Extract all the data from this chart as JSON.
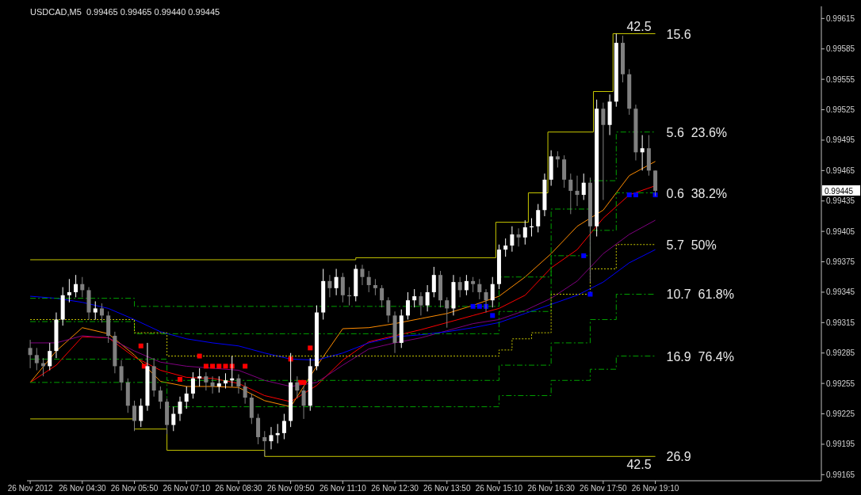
{
  "chart_data": {
    "type": "candlestick",
    "title": "USDCAD,M5  0.99465 0.99465 0.99440 0.99445",
    "x": [
      "2012-11-26T03:10",
      "2012-11-26T03:50",
      "2012-11-26T04:30",
      "2012-11-26T05:10",
      "2012-11-26T05:50",
      "2012-11-26T06:30",
      "2012-11-26T07:10",
      "2012-11-26T07:50",
      "2012-11-26T08:30",
      "2012-11-26T09:10",
      "2012-11-26T09:50",
      "2012-11-26T10:30",
      "2012-11-26T11:10",
      "2012-11-26T11:50",
      "2012-11-26T12:30",
      "2012-11-26T13:10",
      "2012-11-26T13:50",
      "2012-11-26T14:30",
      "2012-11-26T15:10",
      "2012-11-26T15:50",
      "2012-11-26T16:30",
      "2012-11-26T17:10",
      "2012-11-26T17:50",
      "2012-11-26T18:30",
      "2012-11-26T19:10"
    ],
    "series": [
      {
        "type": "line",
        "color": "#ff8c00",
        "values": [
          0.99256,
          0.99287,
          0.9931,
          0.99304,
          0.99283,
          0.99257,
          0.99252,
          0.99252,
          0.99251,
          0.99238,
          0.99232,
          0.99272,
          0.99309,
          0.9931,
          0.99314,
          0.99319,
          0.99324,
          0.99332,
          0.99341,
          0.9936,
          0.99383,
          0.9941,
          0.99426,
          0.9946,
          0.99474
        ]
      },
      {
        "type": "line",
        "color": "#ff0000",
        "values": [
          0.99256,
          0.99273,
          0.99301,
          0.993,
          0.99281,
          0.99268,
          0.99261,
          0.9926,
          0.99255,
          0.99243,
          0.99237,
          0.99253,
          0.99278,
          0.99296,
          0.99302,
          0.99308,
          0.99315,
          0.99322,
          0.99329,
          0.99342,
          0.99369,
          0.99387,
          0.99418,
          0.99441,
          0.9945
        ]
      },
      {
        "type": "line",
        "color": "#800080",
        "values": [
          0.99295,
          0.99295,
          0.99302,
          0.993,
          0.99287,
          0.99276,
          0.99272,
          0.9927,
          0.99268,
          0.99258,
          0.99252,
          0.99256,
          0.99273,
          0.99289,
          0.99295,
          0.993,
          0.99307,
          0.99314,
          0.99318,
          0.99327,
          0.99339,
          0.99356,
          0.99383,
          0.99402,
          0.99416
        ]
      },
      {
        "type": "line",
        "color": "#0000ff",
        "values": [
          0.99341,
          0.99339,
          0.99335,
          0.99329,
          0.99318,
          0.99306,
          0.99299,
          0.99295,
          0.99292,
          0.99285,
          0.99279,
          0.99278,
          0.99285,
          0.99295,
          0.99301,
          0.99303,
          0.99306,
          0.9931,
          0.99315,
          0.99324,
          0.99333,
          0.99342,
          0.99355,
          0.99374,
          0.99387
        ]
      },
      {
        "type": "step",
        "color": "#c8c800",
        "x": [
          "2012-11-26T03:10",
          "2012-11-26T11:30",
          "2012-11-26T15:05",
          "2012-11-26T15:55",
          "2012-11-26T16:25",
          "2012-11-26T17:35",
          "2012-11-26T18:05",
          "2012-11-26T19:10"
        ],
        "values": [
          0.99377,
          0.99379,
          0.99414,
          0.99443,
          0.99503,
          0.99543,
          0.996,
          0.996
        ]
      },
      {
        "type": "step",
        "color": "#c8c800",
        "x": [
          "2012-11-26T03:10",
          "2012-11-26T05:50",
          "2012-11-26T06:40",
          "2012-11-26T09:10",
          "2012-11-26T19:10"
        ],
        "values": [
          0.9922,
          0.9921,
          0.99189,
          0.99183,
          0.99183
        ]
      },
      {
        "type": "step",
        "color": "#00a000",
        "line_style": "dashed",
        "x": [
          "2012-11-26T03:10",
          "2012-11-26T05:50",
          "2012-11-26T15:10",
          "2012-11-26T16:30",
          "2012-11-26T17:30",
          "2012-11-26T18:10",
          "2012-11-26T19:10"
        ],
        "values": [
          0.99339,
          0.99331,
          0.9936,
          0.99427,
          0.99455,
          0.99503,
          0.99503
        ]
      },
      {
        "type": "step",
        "color": "#00a000",
        "line_style": "dashed",
        "x": [
          "2012-11-26T03:10",
          "2012-11-26T05:50",
          "2012-11-26T15:10",
          "2012-11-26T16:30",
          "2012-11-26T17:30",
          "2012-11-26T18:10",
          "2012-11-26T19:10"
        ],
        "values": [
          0.99316,
          0.99304,
          0.99326,
          0.99381,
          0.99406,
          0.99443,
          0.99443
        ]
      },
      {
        "type": "step",
        "color": "#00a000",
        "line_style": "dashed",
        "x": [
          "2012-11-26T03:10",
          "2012-11-26T06:40",
          "2012-11-26T15:10",
          "2012-11-26T16:30",
          "2012-11-26T17:30",
          "2012-11-26T18:10",
          "2012-11-26T19:10"
        ],
        "values": [
          0.99279,
          0.99258,
          0.99273,
          0.99295,
          0.99318,
          0.99343,
          0.99343
        ]
      },
      {
        "type": "step",
        "color": "#00a000",
        "line_style": "dashed",
        "x": [
          "2012-11-26T03:10",
          "2012-11-26T06:40",
          "2012-11-26T15:10",
          "2012-11-26T16:30",
          "2012-11-26T17:30",
          "2012-11-26T18:10",
          "2012-11-26T19:10"
        ],
        "values": [
          0.99256,
          0.99232,
          0.99243,
          0.99258,
          0.99269,
          0.99282,
          0.99282
        ]
      },
      {
        "type": "step",
        "color": "#c8c800",
        "line_style": "dotted",
        "x": [
          "2012-11-26T03:10",
          "2012-11-26T05:50",
          "2012-11-26T06:40",
          "2012-11-26T15:10",
          "2012-11-26T15:30",
          "2012-11-26T16:00",
          "2012-11-26T16:30",
          "2012-11-26T17:30",
          "2012-11-26T18:10",
          "2012-11-26T19:10"
        ],
        "values": [
          0.99318,
          0.99305,
          0.99282,
          0.99288,
          0.99299,
          0.99305,
          0.99343,
          0.99368,
          0.99392,
          0.99392
        ]
      },
      {
        "type": "scatter",
        "color": "#ff0000",
        "marker": "square",
        "x": [
          "2012-11-26T06:00",
          "2012-11-26T06:05",
          "2012-11-26T07:00",
          "2012-11-26T07:30",
          "2012-11-26T07:40",
          "2012-11-26T07:50",
          "2012-11-26T08:00",
          "2012-11-26T08:10",
          "2012-11-26T08:20",
          "2012-11-26T08:40",
          "2012-11-26T09:50",
          "2012-11-26T10:05",
          "2012-11-26T10:10",
          "2012-11-26T10:20"
        ],
        "values": [
          0.99292,
          0.99272,
          0.99259,
          0.99282,
          0.99272,
          0.99272,
          0.99272,
          0.99272,
          0.99272,
          0.99272,
          0.99279,
          0.99256,
          0.99256,
          0.9929
        ]
      },
      {
        "type": "scatter",
        "color": "#0000ff",
        "marker": "square",
        "x": [
          "2012-11-26T14:30",
          "2012-11-26T14:40",
          "2012-11-26T14:50",
          "2012-11-26T15:00",
          "2012-11-26T17:20",
          "2012-11-26T17:30",
          "2012-11-26T18:30",
          "2012-11-26T18:40",
          "2012-11-26T19:10"
        ],
        "values": [
          0.99331,
          0.99331,
          0.99331,
          0.99322,
          0.99381,
          0.99343,
          0.99441,
          0.99441,
          0.99441
        ]
      },
      {
        "color": "#ffffff",
        "x": [
          "2012-11-26T03:40",
          "2012-11-26T03:50",
          "2012-11-26T04:00",
          "2012-11-26T04:10",
          "2012-11-26T04:20",
          "2012-11-26T04:50",
          "2012-11-26T06:00",
          "2012-11-26T06:10",
          "2012-11-26T06:50",
          "2012-11-26T07:00",
          "2012-11-26T07:10",
          "2012-11-26T07:20",
          "2012-11-26T07:30",
          "2012-11-26T08:00",
          "2012-11-26T08:10",
          "2012-11-26T08:20",
          "2012-11-26T09:20",
          "2012-11-26T09:30",
          "2012-11-26T09:40",
          "2012-11-26T09:50",
          "2012-11-26T10:20",
          "2012-11-26T10:30",
          "2012-11-26T10:40",
          "2012-11-26T11:00",
          "2012-11-26T11:30",
          "2012-11-26T12:40",
          "2012-11-26T12:50",
          "2012-11-26T13:00",
          "2012-11-26T13:20",
          "2012-11-26T13:30",
          "2012-11-26T14:00",
          "2012-11-26T14:20",
          "2012-11-26T15:00",
          "2012-11-26T15:10",
          "2012-11-26T15:20",
          "2012-11-26T15:30",
          "2012-11-26T15:50",
          "2012-11-26T16:00",
          "2012-11-26T16:10",
          "2012-11-26T16:20",
          "2012-11-26T16:30",
          "2012-11-26T17:20",
          "2012-11-26T17:40",
          "2012-11-26T18:00",
          "2012-11-26T18:10",
          "2012-11-26T18:50"
        ],
        "ohlc": [
          [
            0.99272,
            0.99295,
            0.99268,
            0.99287
          ],
          [
            0.99287,
            0.99325,
            0.9928,
            0.99318
          ],
          [
            0.99318,
            0.9935,
            0.99312,
            0.99342
          ],
          [
            0.99342,
            0.99358,
            0.99335,
            0.99345
          ],
          [
            0.99345,
            0.99362,
            0.9934,
            0.99353
          ],
          [
            0.99325,
            0.99336,
            0.99318,
            0.99329
          ],
          [
            0.99218,
            0.9924,
            0.99212,
            0.99233
          ],
          [
            0.99233,
            0.99295,
            0.99228,
            0.99272
          ],
          [
            0.99214,
            0.99232,
            0.99208,
            0.99225
          ],
          [
            0.99225,
            0.99242,
            0.99218,
            0.99237
          ],
          [
            0.99237,
            0.99252,
            0.9923,
            0.99245
          ],
          [
            0.99245,
            0.99266,
            0.9924,
            0.9926
          ],
          [
            0.9926,
            0.9927,
            0.99252,
            0.99262
          ],
          [
            0.99252,
            0.99262,
            0.99246,
            0.99255
          ],
          [
            0.99255,
            0.99265,
            0.9925,
            0.99258
          ],
          [
            0.99258,
            0.99282,
            0.99252,
            0.9926
          ],
          [
            0.99198,
            0.99212,
            0.9919,
            0.99204
          ],
          [
            0.99204,
            0.99215,
            0.99196,
            0.99206
          ],
          [
            0.99206,
            0.99225,
            0.992,
            0.99218
          ],
          [
            0.99218,
            0.99285,
            0.99212,
            0.99256
          ],
          [
            0.99233,
            0.9928,
            0.99228,
            0.99272
          ],
          [
            0.99272,
            0.99332,
            0.99268,
            0.99325
          ],
          [
            0.99325,
            0.99368,
            0.99318,
            0.99356
          ],
          [
            0.99349,
            0.99368,
            0.99342,
            0.9936
          ],
          [
            0.99341,
            0.99372,
            0.99336,
            0.99368
          ],
          [
            0.99295,
            0.99328,
            0.9929,
            0.99322
          ],
          [
            0.99322,
            0.99345,
            0.99318,
            0.99337
          ],
          [
            0.99337,
            0.99348,
            0.9933,
            0.99341
          ],
          [
            0.99332,
            0.99352,
            0.99326,
            0.99345
          ],
          [
            0.99345,
            0.9937,
            0.9934,
            0.99362
          ],
          [
            0.99329,
            0.99362,
            0.99322,
            0.99355
          ],
          [
            0.99347,
            0.99362,
            0.99342,
            0.99356
          ],
          [
            0.99337,
            0.9936,
            0.9933,
            0.99353
          ],
          [
            0.99353,
            0.99392,
            0.99348,
            0.99387
          ],
          [
            0.99387,
            0.99398,
            0.9938,
            0.99391
          ],
          [
            0.99391,
            0.9941,
            0.99385,
            0.99402
          ],
          [
            0.99399,
            0.99416,
            0.99392,
            0.99409
          ],
          [
            0.99409,
            0.99418,
            0.994,
            0.9941
          ],
          [
            0.9941,
            0.99432,
            0.99404,
            0.99426
          ],
          [
            0.99426,
            0.99462,
            0.9942,
            0.99456
          ],
          [
            0.99456,
            0.99485,
            0.9945,
            0.99479
          ],
          [
            0.99441,
            0.99462,
            0.99436,
            0.99453
          ],
          [
            0.9941,
            0.99535,
            0.994,
            0.99526
          ],
          [
            0.9951,
            0.9954,
            0.995,
            0.99533
          ],
          [
            0.99533,
            0.996,
            0.99528,
            0.99591
          ],
          [
            0.99483,
            0.995,
            0.99465,
            0.99487
          ]
        ]
      },
      {
        "color": "#808080",
        "x": [
          "2012-11-26T03:10",
          "2012-11-26T03:20",
          "2012-11-26T03:30",
          "2012-11-26T04:30",
          "2012-11-26T04:40",
          "2012-11-26T05:00",
          "2012-11-26T05:10",
          "2012-11-26T05:20",
          "2012-11-26T05:30",
          "2012-11-26T05:40",
          "2012-11-26T05:50",
          "2012-11-26T06:20",
          "2012-11-26T06:30",
          "2012-11-26T06:40",
          "2012-11-26T07:40",
          "2012-11-26T07:50",
          "2012-11-26T08:30",
          "2012-11-26T08:40",
          "2012-11-26T08:50",
          "2012-11-26T09:00",
          "2012-11-26T09:10",
          "2012-11-26T10:00",
          "2012-11-26T10:10",
          "2012-11-26T10:50",
          "2012-11-26T11:10",
          "2012-11-26T11:20",
          "2012-11-26T11:40",
          "2012-11-26T11:50",
          "2012-11-26T12:00",
          "2012-11-26T12:10",
          "2012-11-26T12:20",
          "2012-11-26T12:30",
          "2012-11-26T13:10",
          "2012-11-26T13:40",
          "2012-11-26T13:50",
          "2012-11-26T14:10",
          "2012-11-26T14:30",
          "2012-11-26T14:40",
          "2012-11-26T14:50",
          "2012-11-26T15:40",
          "2012-11-26T16:40",
          "2012-11-26T16:50",
          "2012-11-26T17:00",
          "2012-11-26T17:10",
          "2012-11-26T17:30",
          "2012-11-26T17:50",
          "2012-11-26T18:20",
          "2012-11-26T18:30",
          "2012-11-26T18:40",
          "2012-11-26T19:00",
          "2012-11-26T19:10"
        ],
        "ohlc": [
          [
            0.9929,
            0.99298,
            0.9927,
            0.99283
          ],
          [
            0.99283,
            0.9929,
            0.99268,
            0.99275
          ],
          [
            0.99275,
            0.9928,
            0.99262,
            0.99272
          ],
          [
            0.99353,
            0.9936,
            0.9934,
            0.99347
          ],
          [
            0.99347,
            0.9935,
            0.99318,
            0.99325
          ],
          [
            0.99329,
            0.99334,
            0.99315,
            0.99322
          ],
          [
            0.99322,
            0.99326,
            0.99295,
            0.99302
          ],
          [
            0.99302,
            0.99306,
            0.99265,
            0.99272
          ],
          [
            0.99272,
            0.99278,
            0.99248,
            0.99256
          ],
          [
            0.99256,
            0.9926,
            0.99226,
            0.99233
          ],
          [
            0.99233,
            0.99238,
            0.99208,
            0.99218
          ],
          [
            0.99272,
            0.9928,
            0.99242,
            0.99248
          ],
          [
            0.99248,
            0.99252,
            0.9923,
            0.99237
          ],
          [
            0.99237,
            0.9924,
            0.99205,
            0.99214
          ],
          [
            0.99262,
            0.99266,
            0.99248,
            0.99256
          ],
          [
            0.99256,
            0.99262,
            0.99245,
            0.99252
          ],
          [
            0.9926,
            0.99264,
            0.99245,
            0.99252
          ],
          [
            0.99252,
            0.99256,
            0.99235,
            0.99241
          ],
          [
            0.99241,
            0.99245,
            0.99215,
            0.99221
          ],
          [
            0.99221,
            0.99225,
            0.99195,
            0.99202
          ],
          [
            0.99202,
            0.99208,
            0.99183,
            0.99198
          ],
          [
            0.99256,
            0.99262,
            0.9924,
            0.99248
          ],
          [
            0.99248,
            0.99252,
            0.9922,
            0.99233
          ],
          [
            0.99356,
            0.99362,
            0.9934,
            0.99349
          ],
          [
            0.9936,
            0.99364,
            0.99335,
            0.99342
          ],
          [
            0.99342,
            0.9935,
            0.99332,
            0.99341
          ],
          [
            0.99368,
            0.99372,
            0.99352,
            0.9936
          ],
          [
            0.9936,
            0.99366,
            0.99345,
            0.99352
          ],
          [
            0.99352,
            0.99358,
            0.99342,
            0.99349
          ],
          [
            0.99349,
            0.99352,
            0.9933,
            0.99337
          ],
          [
            0.99337,
            0.9934,
            0.99315,
            0.99322
          ],
          [
            0.99322,
            0.99326,
            0.99285,
            0.99295
          ],
          [
            0.99341,
            0.99345,
            0.99322,
            0.99332
          ],
          [
            0.99362,
            0.99366,
            0.9933,
            0.99337
          ],
          [
            0.99337,
            0.9934,
            0.9931,
            0.99329
          ],
          [
            0.99355,
            0.9936,
            0.9934,
            0.99347
          ],
          [
            0.99356,
            0.9936,
            0.99345,
            0.99353
          ],
          [
            0.99353,
            0.99358,
            0.99338,
            0.99345
          ],
          [
            0.99345,
            0.99348,
            0.99325,
            0.99337
          ],
          [
            0.99402,
            0.99408,
            0.9939,
            0.99399
          ],
          [
            0.99479,
            0.99484,
            0.99468,
            0.99476
          ],
          [
            0.99476,
            0.9948,
            0.99448,
            0.99456
          ],
          [
            0.99456,
            0.99462,
            0.99422,
            0.99445
          ],
          [
            0.99445,
            0.9946,
            0.9943,
            0.99441
          ],
          [
            0.99453,
            0.99458,
            0.99355,
            0.9941
          ],
          [
            0.99526,
            0.99532,
            0.99436,
            0.9951
          ],
          [
            0.99591,
            0.99598,
            0.99552,
            0.9956
          ],
          [
            0.9956,
            0.99565,
            0.9952,
            0.99526
          ],
          [
            0.99526,
            0.9953,
            0.99475,
            0.99483
          ],
          [
            0.99487,
            0.995,
            0.9946,
            0.99465
          ],
          [
            0.99465,
            0.99465,
            0.9944,
            0.99445
          ]
        ]
      }
    ],
    "annotations": [
      {
        "text": "42.5",
        "x": "2012-11-26T18:45",
        "y": 0.996
      },
      {
        "text": "15.6",
        "x": "2012-11-26T19:10",
        "y": 0.996
      },
      {
        "text": "5.6  23.6%",
        "x": "2012-11-26T19:10",
        "y": 0.99503
      },
      {
        "text": "0.6  38.2%",
        "x": "2012-11-26T19:10",
        "y": 0.99443
      },
      {
        "text": "5.7  50%",
        "x": "2012-11-26T19:10",
        "y": 0.99392
      },
      {
        "text": "10.7  61.8%",
        "x": "2012-11-26T19:10",
        "y": 0.99343
      },
      {
        "text": "16.9  76.4%",
        "x": "2012-11-26T19:10",
        "y": 0.99282
      },
      {
        "text": "26.9",
        "x": "2012-11-26T19:10",
        "y": 0.99183
      },
      {
        "text": "42.5",
        "x": "2012-11-26T18:45",
        "y": 0.99183
      },
      "0.99445"
    ],
    "xlim": [
      "2012-11-26T03:05",
      "2012-11-26T23:25"
    ],
    "xticks": [
      {
        "value": "2012-11-26T03:10",
        "label": "26 Nov 2012"
      },
      {
        "value": "2012-11-26T04:30",
        "label": "26 Nov 04:30"
      },
      {
        "value": "2012-11-26T05:50",
        "label": "26 Nov 05:50"
      },
      {
        "value": "2012-11-26T07:10",
        "label": "26 Nov 07:10"
      },
      {
        "value": "2012-11-26T08:30",
        "label": "26 Nov 08:30"
      },
      {
        "value": "2012-11-26T09:50",
        "label": "26 Nov 09:50"
      },
      {
        "value": "2012-11-26T11:10",
        "label": "26 Nov 11:10"
      },
      {
        "value": "2012-11-26T12:30",
        "label": "26 Nov 12:30"
      },
      {
        "value": "2012-11-26T13:50",
        "label": "26 Nov 13:50"
      },
      {
        "value": "2012-11-26T15:10",
        "label": "26 Nov 15:10"
      },
      {
        "value": "2012-11-26T16:30",
        "label": "26 Nov 16:30"
      },
      {
        "value": "2012-11-26T17:50",
        "label": "26 Nov 17:50"
      },
      {
        "value": "2012-11-26T19:10",
        "label": "26 Nov 19:10"
      }
    ],
    "ylim": [
      0.99159,
      0.99627
    ],
    "yticks": [
      0.99165,
      0.99195,
      0.99225,
      0.99255,
      0.99285,
      0.99315,
      0.99345,
      0.99375,
      0.99405,
      0.99435,
      0.99465,
      0.99495,
      0.99525,
      0.99555,
      0.99585,
      0.99615
    ]
  }
}
